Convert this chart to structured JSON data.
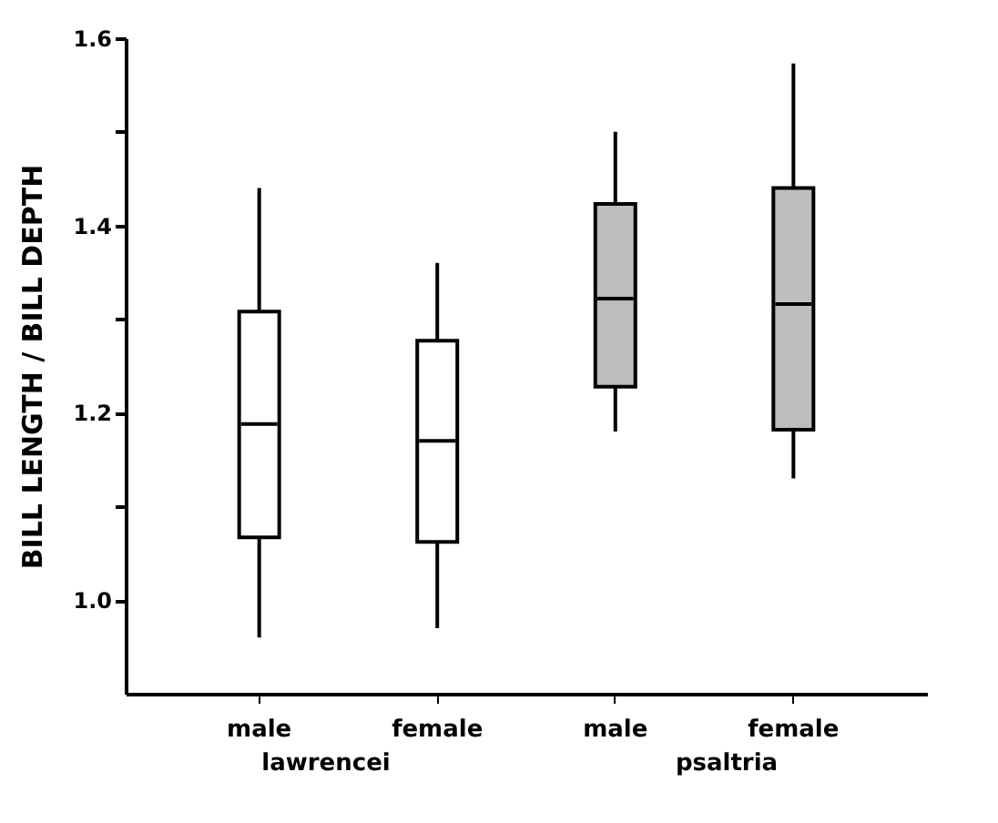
{
  "chart_data": {
    "type": "box",
    "ylabel": "BILL  LENGTH / BILL  DEPTH",
    "categories": [
      "male",
      "female",
      "male",
      "female"
    ],
    "boxes": [
      {
        "low": 0.96,
        "q1": 1.067,
        "median": 1.188,
        "q3": 1.308,
        "high": 1.44
      },
      {
        "low": 0.97,
        "q1": 1.062,
        "median": 1.17,
        "q3": 1.277,
        "high": 1.36
      },
      {
        "low": 1.18,
        "q1": 1.228,
        "median": 1.322,
        "q3": 1.423,
        "high": 1.5
      },
      {
        "low": 1.13,
        "q1": 1.182,
        "median": 1.316,
        "q3": 1.44,
        "high": 1.573
      }
    ],
    "colors": [
      "#ffffff",
      "#ffffff",
      "#bdbdbd",
      "#bdbdbd"
    ],
    "annotations": [
      "lawrencei",
      "psaltria"
    ],
    "ylim": [
      0.9,
      1.6
    ],
    "yticks": [
      {
        "value": 1.0,
        "label": "1.0"
      },
      {
        "value": 1.1,
        "label": null
      },
      {
        "value": 1.2,
        "label": "1.2"
      },
      {
        "value": 1.3,
        "label": null
      },
      {
        "value": 1.4,
        "label": "1.4"
      },
      {
        "value": 1.5,
        "label": null
      },
      {
        "value": 1.6,
        "label": "1.6"
      }
    ],
    "grid": false
  }
}
